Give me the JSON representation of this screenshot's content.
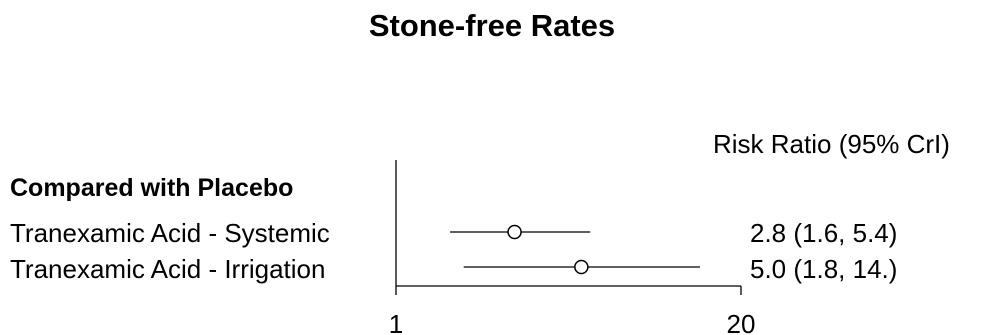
{
  "chart_data": {
    "type": "forest",
    "title": "Stone-free Rates",
    "column_header": "Risk Ratio (95% CrI)",
    "group": "Compared with Placebo",
    "x_scale": "log",
    "xlim": [
      1,
      20
    ],
    "reference_line": 1,
    "x_ticks": [
      {
        "value": 1,
        "label": "1"
      },
      {
        "value": 20,
        "label": "20"
      }
    ],
    "rows": [
      {
        "label": "Tranexamic Acid - Systemic",
        "estimate": 2.8,
        "lower": 1.6,
        "upper": 5.4,
        "text": "2.8 (1.6, 5.4)"
      },
      {
        "label": "Tranexamic Acid - Irrigation",
        "estimate": 5.0,
        "lower": 1.8,
        "upper": 14.0,
        "text": "5.0 (1.8, 14.)"
      }
    ]
  }
}
